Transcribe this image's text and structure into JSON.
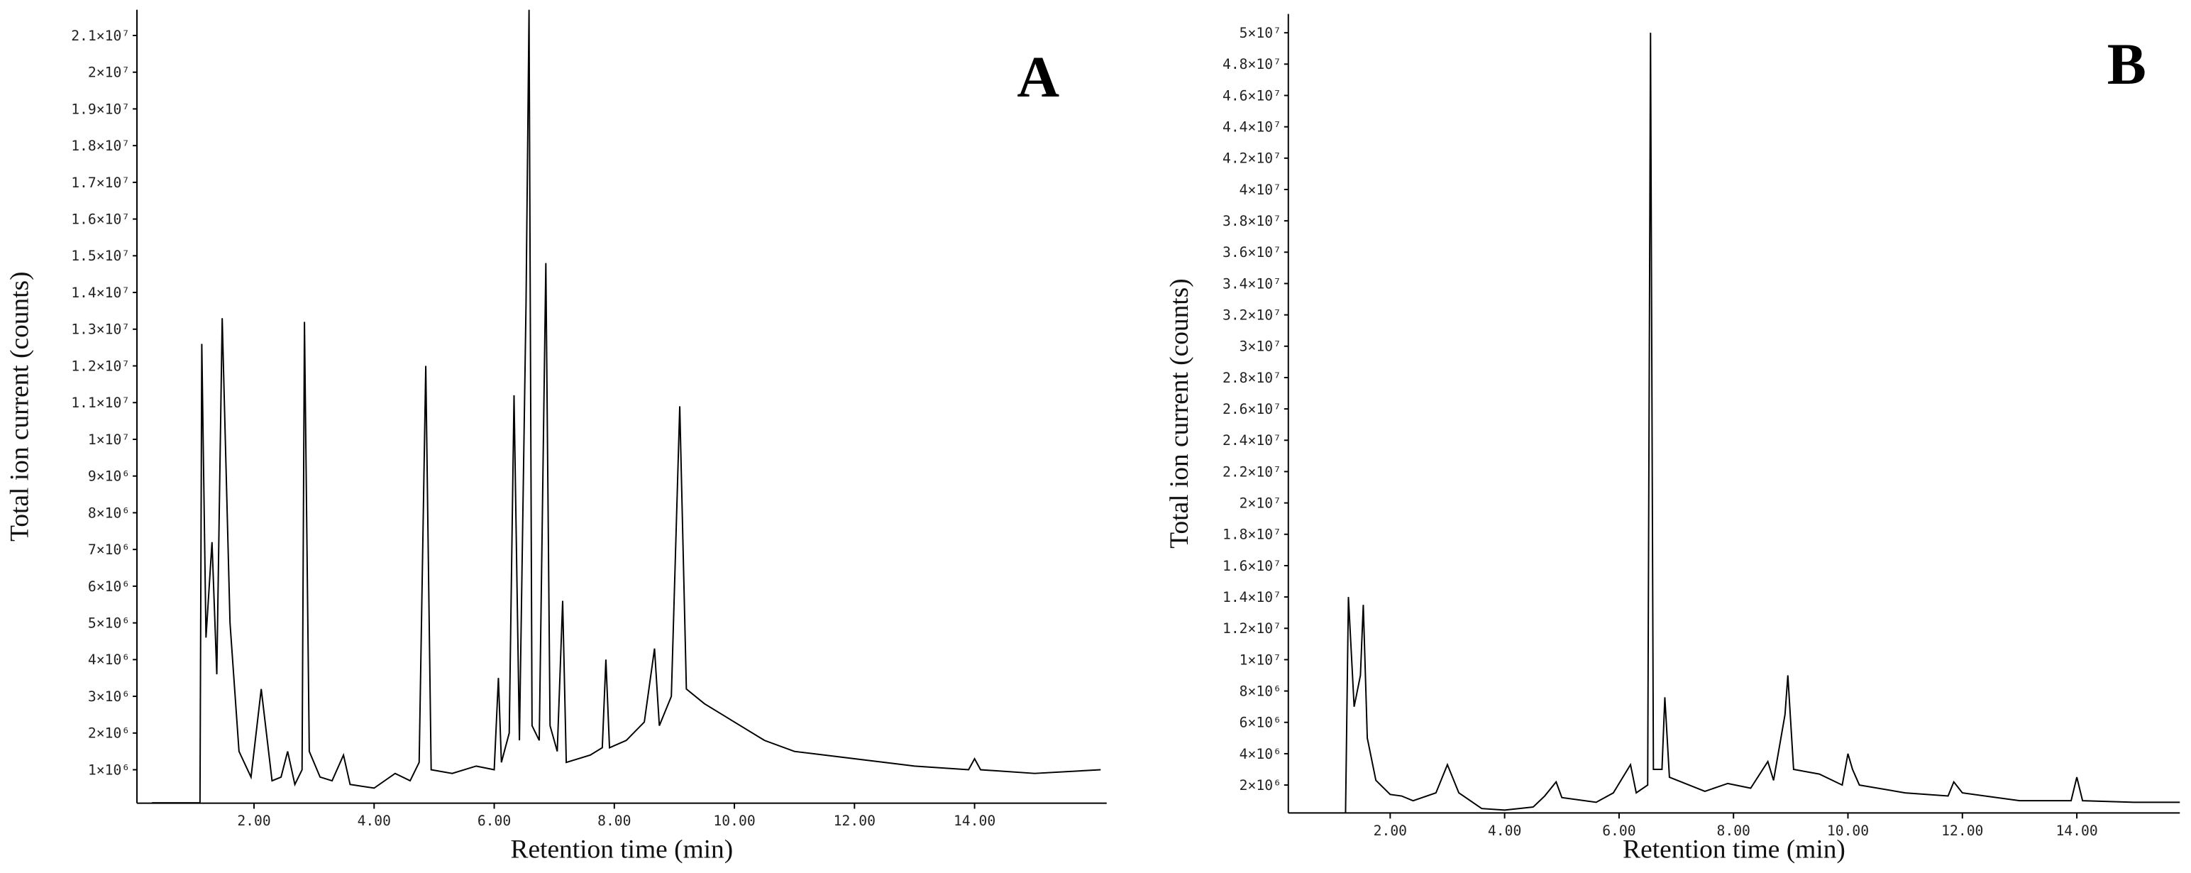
{
  "chart_data": [
    {
      "type": "line",
      "annotation": "A",
      "x_label": "Retention time (min)",
      "y_label": "Total ion current (counts)",
      "xlim": [
        0.05,
        16.2
      ],
      "ylim": [
        90000,
        21700000
      ],
      "xticks": [
        {
          "value": 2,
          "label": "2.00"
        },
        {
          "value": 4,
          "label": "4.00"
        },
        {
          "value": 6,
          "label": "6.00"
        },
        {
          "value": 8,
          "label": "8.00"
        },
        {
          "value": 10,
          "label": "10.00"
        },
        {
          "value": 12,
          "label": "12.00"
        },
        {
          "value": 14,
          "label": "14.00"
        }
      ],
      "yticks": [
        {
          "value": 1000000,
          "label": "1×10⁶"
        },
        {
          "value": 2000000,
          "label": "2×10⁶"
        },
        {
          "value": 3000000,
          "label": "3×10⁶"
        },
        {
          "value": 4000000,
          "label": "4×10⁶"
        },
        {
          "value": 5000000,
          "label": "5×10⁶"
        },
        {
          "value": 6000000,
          "label": "6×10⁶"
        },
        {
          "value": 7000000,
          "label": "7×10⁶"
        },
        {
          "value": 8000000,
          "label": "8×10⁶"
        },
        {
          "value": 9000000,
          "label": "9×10⁶"
        },
        {
          "value": 10000000,
          "label": "1×10⁷"
        },
        {
          "value": 11000000,
          "label": "1.1×10⁷"
        },
        {
          "value": 12000000,
          "label": "1.2×10⁷"
        },
        {
          "value": 13000000,
          "label": "1.3×10⁷"
        },
        {
          "value": 14000000,
          "label": "1.4×10⁷"
        },
        {
          "value": 15000000,
          "label": "1.5×10⁷"
        },
        {
          "value": 16000000,
          "label": "1.6×10⁷"
        },
        {
          "value": 17000000,
          "label": "1.7×10⁷"
        },
        {
          "value": 18000000,
          "label": "1.8×10⁷"
        },
        {
          "value": 19000000,
          "label": "1.9×10⁷"
        },
        {
          "value": 20000000,
          "label": "2×10⁷"
        },
        {
          "value": 21000000,
          "label": "2.1×10⁷"
        }
      ],
      "x": [
        0.3,
        1.1,
        1.13,
        1.2,
        1.3,
        1.38,
        1.47,
        1.6,
        1.75,
        1.95,
        2.12,
        2.3,
        2.45,
        2.56,
        2.68,
        2.8,
        2.84,
        2.92,
        3.1,
        3.3,
        3.49,
        3.6,
        4.0,
        4.35,
        4.6,
        4.75,
        4.86,
        4.95,
        5.3,
        5.7,
        6.0,
        6.07,
        6.12,
        6.25,
        6.33,
        6.42,
        6.53,
        6.58,
        6.63,
        6.75,
        6.86,
        6.93,
        7.05,
        7.14,
        7.2,
        7.6,
        7.8,
        7.86,
        7.92,
        8.2,
        8.5,
        8.67,
        8.75,
        8.95,
        9.09,
        9.2,
        9.5,
        10,
        10.5,
        11,
        12,
        13,
        13.9,
        14,
        14.1,
        15,
        16.1
      ],
      "series": [
        {
          "color": "#000000",
          "values": [
            100000,
            100000,
            12600000,
            4600000,
            7200000,
            3600000,
            13300000,
            5000000,
            1500000,
            800000,
            3200000,
            700000,
            800000,
            1500000,
            600000,
            1000000,
            13200000,
            1500000,
            800000,
            700000,
            1400000,
            600000,
            500000,
            900000,
            700000,
            1200000,
            12000000,
            1000000,
            900000,
            1100000,
            1000000,
            3500000,
            1200000,
            2000000,
            11200000,
            1800000,
            13700000,
            21700000,
            2200000,
            1800000,
            14800000,
            2200000,
            1500000,
            5600000,
            1200000,
            1400000,
            1600000,
            4000000,
            1600000,
            1800000,
            2300000,
            4300000,
            2200000,
            3000000,
            10900000,
            3200000,
            2800000,
            2300000,
            1800000,
            1500000,
            1300000,
            1100000,
            1000000,
            1300000,
            1000000,
            900000,
            1000000
          ]
        }
      ]
    },
    {
      "type": "line",
      "annotation": "B",
      "x_label": "Retention time (min)",
      "y_label": "Total ion current (counts)",
      "xlim": [
        0.22,
        15.8
      ],
      "ylim": [
        220000,
        51200000
      ],
      "xticks": [
        {
          "value": 2,
          "label": "2.00"
        },
        {
          "value": 4,
          "label": "4.00"
        },
        {
          "value": 6,
          "label": "6.00"
        },
        {
          "value": 8,
          "label": "8.00"
        },
        {
          "value": 10,
          "label": "10.00"
        },
        {
          "value": 12,
          "label": "12.00"
        },
        {
          "value": 14,
          "label": "14.00"
        }
      ],
      "yticks": [
        {
          "value": 2000000,
          "label": "2×10⁶"
        },
        {
          "value": 4000000,
          "label": "4×10⁶"
        },
        {
          "value": 6000000,
          "label": "6×10⁶"
        },
        {
          "value": 8000000,
          "label": "8×10⁶"
        },
        {
          "value": 10000000,
          "label": "1×10⁷"
        },
        {
          "value": 12000000,
          "label": "1.2×10⁷"
        },
        {
          "value": 14000000,
          "label": "1.4×10⁷"
        },
        {
          "value": 16000000,
          "label": "1.6×10⁷"
        },
        {
          "value": 18000000,
          "label": "1.8×10⁷"
        },
        {
          "value": 20000000,
          "label": "2×10⁷"
        },
        {
          "value": 22000000,
          "label": "2.2×10⁷"
        },
        {
          "value": 24000000,
          "label": "2.4×10⁷"
        },
        {
          "value": 26000000,
          "label": "2.6×10⁷"
        },
        {
          "value": 28000000,
          "label": "2.8×10⁷"
        },
        {
          "value": 30000000,
          "label": "3×10⁷"
        },
        {
          "value": 32000000,
          "label": "3.2×10⁷"
        },
        {
          "value": 34000000,
          "label": "3.4×10⁷"
        },
        {
          "value": 36000000,
          "label": "3.6×10⁷"
        },
        {
          "value": 38000000,
          "label": "3.8×10⁷"
        },
        {
          "value": 40000000,
          "label": "4×10⁷"
        },
        {
          "value": 42000000,
          "label": "4.2×10⁷"
        },
        {
          "value": 44000000,
          "label": "4.4×10⁷"
        },
        {
          "value": 46000000,
          "label": "4.6×10⁷"
        },
        {
          "value": 48000000,
          "label": "4.8×10⁷"
        },
        {
          "value": 50000000,
          "label": "5×10⁷"
        }
      ],
      "x": [
        1.22,
        1.27,
        1.37,
        1.48,
        1.53,
        1.6,
        1.75,
        2.0,
        2.2,
        2.4,
        2.8,
        3.0,
        3.2,
        3.6,
        4.0,
        4.5,
        4.7,
        4.9,
        5.0,
        5.6,
        5.9,
        6.2,
        6.3,
        6.5,
        6.55,
        6.6,
        6.75,
        6.8,
        6.88,
        7.5,
        7.9,
        8.3,
        8.6,
        8.7,
        8.9,
        8.95,
        9.05,
        9.5,
        9.9,
        10.0,
        10.08,
        10.2,
        11,
        11.75,
        11.85,
        12.0,
        13,
        13.9,
        14.0,
        14.1,
        15,
        15.8
      ],
      "series": [
        {
          "color": "#000000",
          "values": [
            220000,
            14000000,
            7000000,
            9000000,
            13500000,
            5000000,
            2300000,
            1400000,
            1300000,
            1000000,
            1500000,
            3300000,
            1500000,
            500000,
            400000,
            600000,
            1300000,
            2200000,
            1200000,
            900000,
            1500000,
            3300000,
            1500000,
            2000000,
            50000000,
            3000000,
            3000000,
            7600000,
            2500000,
            1600000,
            2100000,
            1800000,
            3500000,
            2300000,
            6500000,
            9000000,
            3000000,
            2700000,
            2000000,
            4000000,
            3000000,
            2000000,
            1500000,
            1300000,
            2200000,
            1500000,
            1000000,
            1000000,
            2500000,
            1000000,
            900000,
            900000
          ]
        }
      ]
    }
  ]
}
